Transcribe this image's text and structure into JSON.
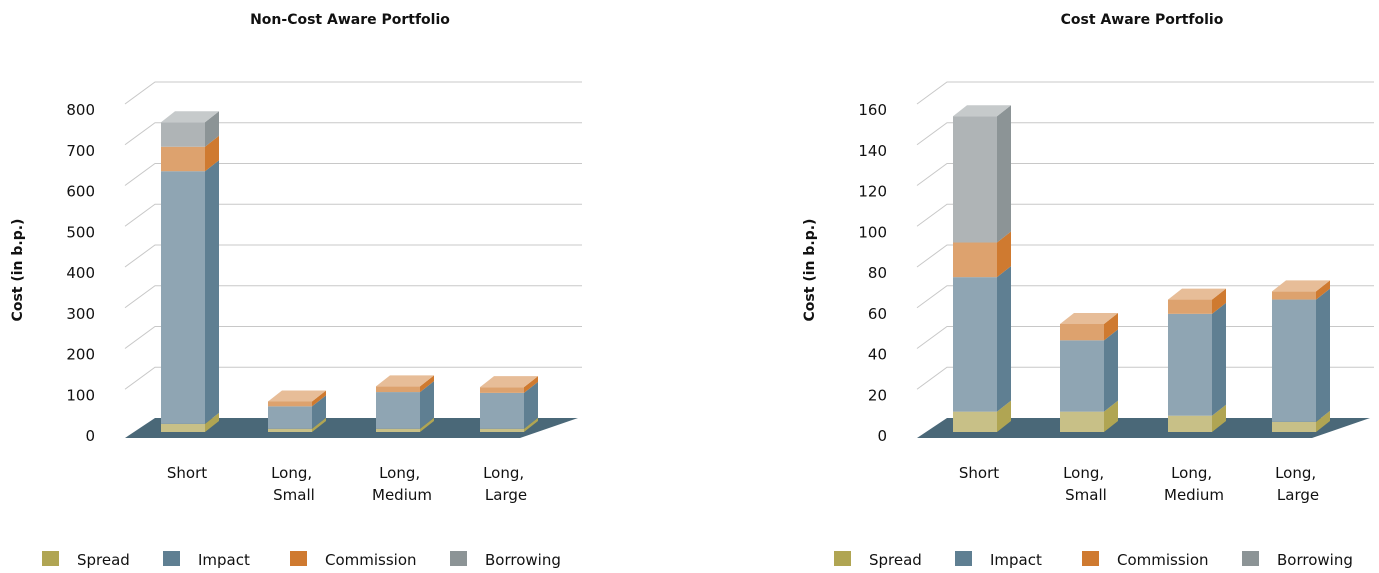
{
  "chart_data": [
    {
      "type": "bar3d_stacked",
      "title": "Non-Cost Aware Portfolio",
      "y_label": "Cost (in b.p.)",
      "categories": [
        "Short",
        "Long, Small",
        "Long, Medium",
        "Long, Large"
      ],
      "series": [
        {
          "name": "Spread",
          "color": "#b0a553",
          "values": [
            20,
            8,
            8,
            8
          ]
        },
        {
          "name": "Impact",
          "color": "#5f7f92",
          "values": [
            620,
            55,
            90,
            88
          ]
        },
        {
          "name": "Commission",
          "color": "#cf7a30",
          "values": [
            60,
            12,
            14,
            14
          ]
        },
        {
          "name": "Borrowing",
          "color": "#8c9496",
          "values": [
            60,
            0,
            0,
            0
          ]
        }
      ],
      "ylim": [
        0,
        800
      ],
      "yticks": [
        0,
        100,
        200,
        300,
        400,
        500,
        600,
        700,
        800
      ],
      "grid": true,
      "legend": "bottom"
    },
    {
      "type": "bar3d_stacked",
      "title": "Cost Aware Portfolio",
      "y_label": "Cost (in b.p.)",
      "categories": [
        "Short",
        "Long, Small",
        "Long, Medium",
        "Long, Large"
      ],
      "series": [
        {
          "name": "Spread",
          "color": "#b0a553",
          "values": [
            10,
            10,
            8,
            5
          ]
        },
        {
          "name": "Impact",
          "color": "#5f7f92",
          "values": [
            66,
            35,
            50,
            60
          ]
        },
        {
          "name": "Commission",
          "color": "#cf7a30",
          "values": [
            17,
            8,
            7,
            4
          ]
        },
        {
          "name": "Borrowing",
          "color": "#8c9496",
          "values": [
            62,
            0,
            0,
            0
          ]
        }
      ],
      "ylim": [
        0,
        160
      ],
      "yticks": [
        0,
        20,
        40,
        60,
        80,
        100,
        120,
        140,
        160
      ],
      "grid": true,
      "legend": "bottom"
    }
  ]
}
